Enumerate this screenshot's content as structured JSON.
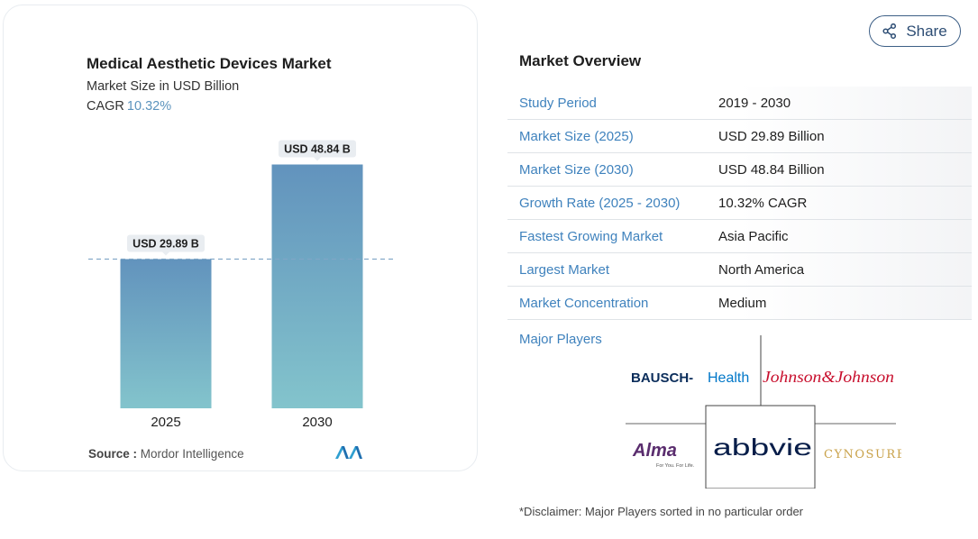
{
  "chart_data": {
    "type": "bar",
    "title": "Medical Aesthetic Devices Market",
    "subtitle": "Market Size in USD Billion",
    "cagr_label": "CAGR",
    "cagr_value": "10.32%",
    "categories": [
      "2025",
      "2030"
    ],
    "values": [
      29.89,
      48.84
    ],
    "data_labels": [
      "USD 29.89 B",
      "USD 48.84 B"
    ],
    "ylim": [
      0,
      52
    ],
    "reference_line_value": 29.89,
    "bar_color_top": "#6293bd",
    "bar_color_bottom": "#83c4cc"
  },
  "source": {
    "label": "Source :",
    "name": "Mordor Intelligence"
  },
  "share": {
    "label": "Share",
    "icon": "share-icon"
  },
  "overview": {
    "title": "Market Overview",
    "rows": [
      {
        "key": "Study Period",
        "value": "2019 - 2030"
      },
      {
        "key": "Market Size (2025)",
        "value": "USD 29.89 Billion"
      },
      {
        "key": "Market Size (2030)",
        "value": "USD 48.84 Billion"
      },
      {
        "key": "Growth Rate (2025 - 2030)",
        "value": "10.32% CAGR"
      },
      {
        "key": "Fastest Growing Market",
        "value": "Asia Pacific"
      },
      {
        "key": "Largest Market",
        "value": "North America"
      },
      {
        "key": "Market Concentration",
        "value": "Medium"
      }
    ]
  },
  "players": {
    "label": "Major Players",
    "logos": [
      "BAUSCH Health",
      "Johnson & Johnson",
      "Alma",
      "abbvie",
      "CYNOSURE"
    ],
    "alma_tagline": "For You. For Life."
  },
  "disclaimer": "*Disclaimer: Major Players sorted in no particular order",
  "colors": {
    "accent": "#3f82bd",
    "share_border": "#3d5f86",
    "cagr": "#5b93bd",
    "jnj_red": "#c8102e",
    "bausch_blue": "#0077c8",
    "cynosure_gold": "#c9a24a",
    "alma_purple": "#5a2d6e"
  }
}
